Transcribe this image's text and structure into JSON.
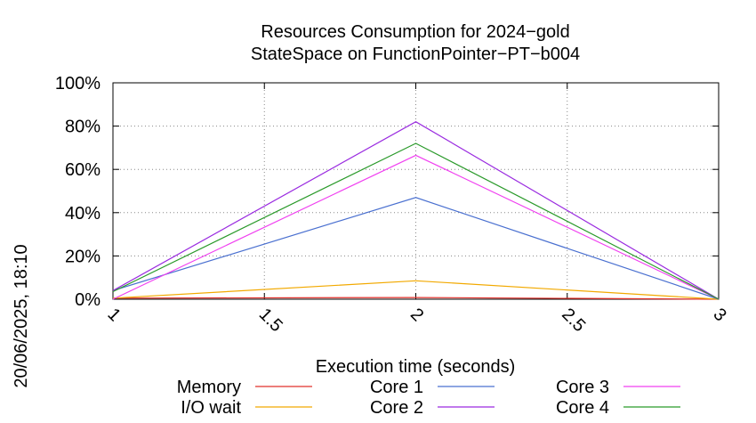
{
  "chart_data": {
    "type": "line",
    "title_line1": "Resources Consumption for 2024−gold",
    "title_line2": "StateSpace on FunctionPointer−PT−b004",
    "xlabel": "Execution time (seconds)",
    "ylabel": "",
    "side_label": "20/06/2025, 18:10",
    "xlim": [
      1,
      3
    ],
    "ylim": [
      0,
      100
    ],
    "x_ticks": [
      "1",
      "1.5",
      "2",
      "2.5",
      "3"
    ],
    "x_tick_values": [
      1,
      1.5,
      2,
      2.5,
      3
    ],
    "y_ticks": [
      "0%",
      "20%",
      "40%",
      "60%",
      "80%",
      "100%"
    ],
    "y_tick_values": [
      0,
      20,
      40,
      60,
      80,
      100
    ],
    "grid": true,
    "legend_position": "bottom",
    "x": [
      1,
      2,
      3
    ],
    "series": [
      {
        "name": "Memory",
        "color": "#e0302a",
        "values": [
          0.5,
          0.8,
          0
        ]
      },
      {
        "name": "I/O wait",
        "color": "#f2a900",
        "values": [
          0.5,
          8.5,
          0
        ]
      },
      {
        "name": "Core 1",
        "color": "#4a70d0",
        "values": [
          4,
          47,
          0
        ]
      },
      {
        "name": "Core 2",
        "color": "#9a2be0",
        "values": [
          4,
          82,
          0
        ]
      },
      {
        "name": "Core 3",
        "color": "#f040f0",
        "values": [
          0,
          66.5,
          0
        ]
      },
      {
        "name": "Core 4",
        "color": "#2a9a2a",
        "values": [
          3.5,
          72,
          0
        ]
      }
    ]
  }
}
